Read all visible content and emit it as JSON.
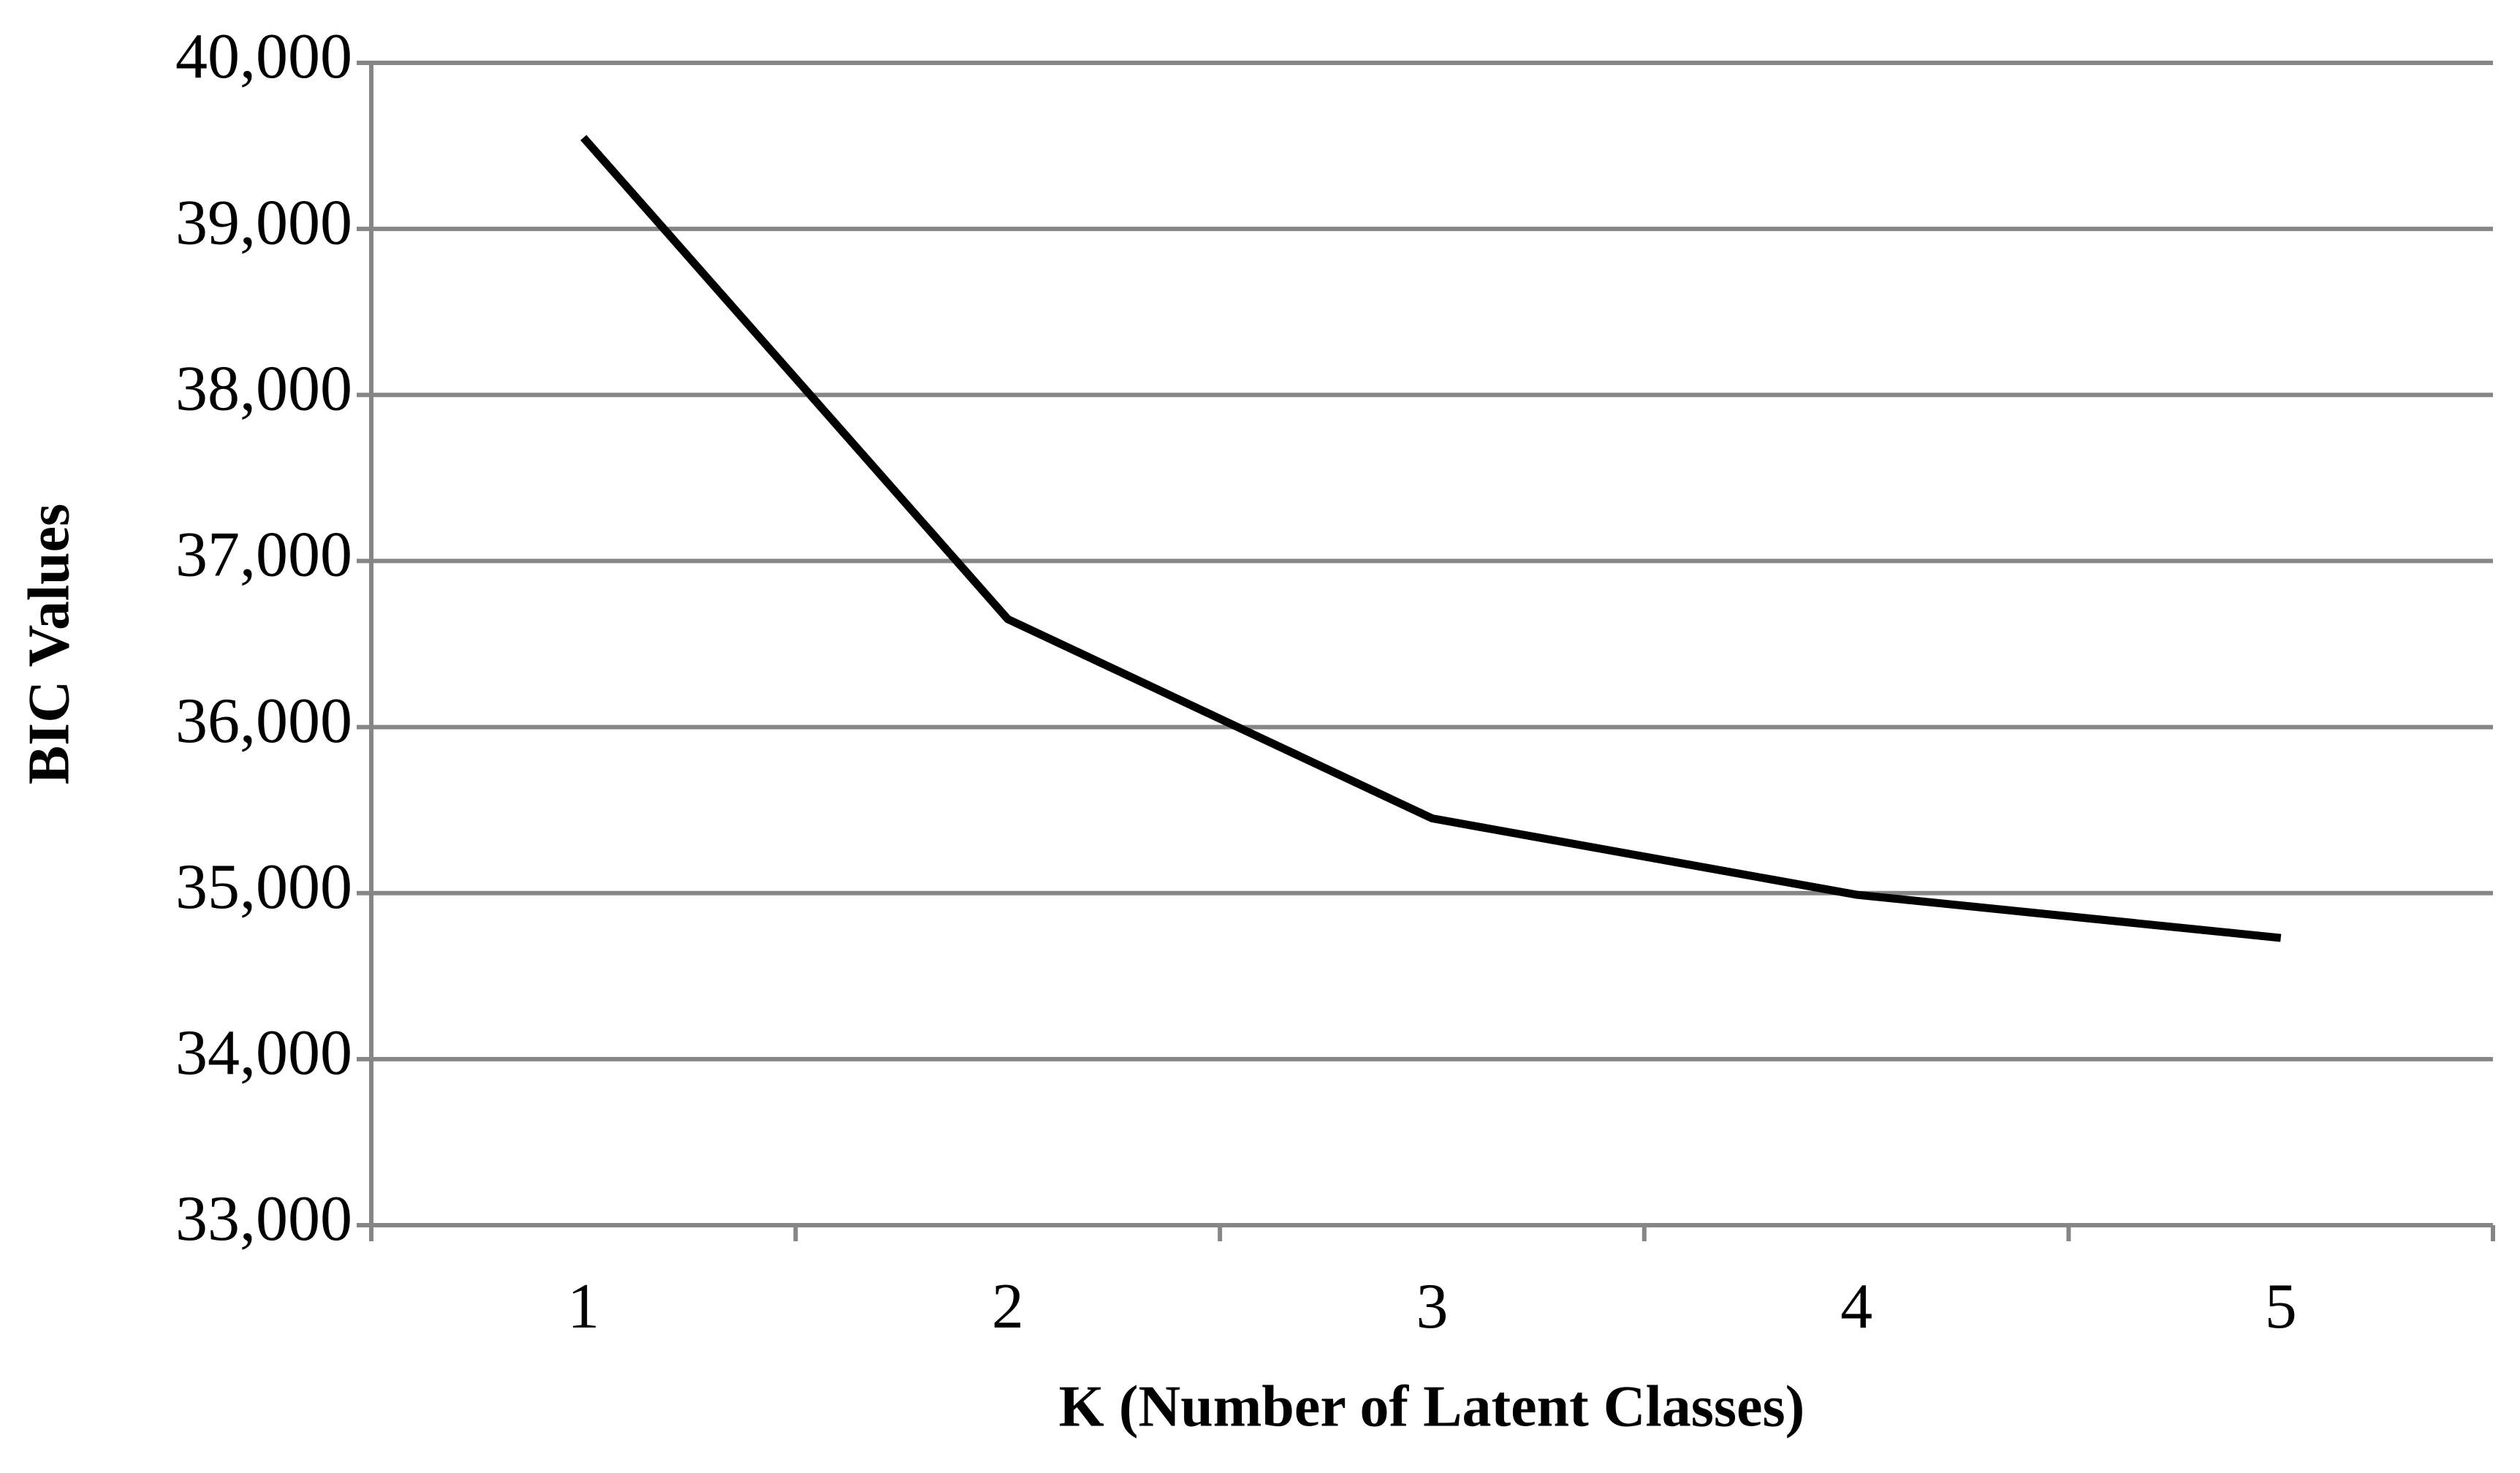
{
  "chart_data": {
    "type": "line",
    "categories": [
      "1",
      "2",
      "3",
      "4",
      "5"
    ],
    "values": [
      39550,
      36650,
      35450,
      34990,
      34730
    ],
    "color": "#000000",
    "xlabel": "K (Number of Latent Classes)",
    "ylabel": "BIC Values",
    "ylim": [
      33000,
      40000
    ],
    "yticks": [
      {
        "value": 33000,
        "label": "33,000"
      },
      {
        "value": 34000,
        "label": "34,000"
      },
      {
        "value": 35000,
        "label": "35,000"
      },
      {
        "value": 36000,
        "label": "36,000"
      },
      {
        "value": 37000,
        "label": "37,000"
      },
      {
        "value": 38000,
        "label": "38,000"
      },
      {
        "value": 39000,
        "label": "39,000"
      },
      {
        "value": 40000,
        "label": "40,000"
      }
    ],
    "grid": true
  }
}
